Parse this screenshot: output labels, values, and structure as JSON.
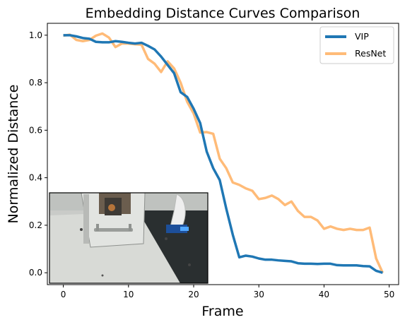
{
  "chart_data": {
    "type": "line",
    "title": "Embedding Distance Curves Comparison",
    "xlabel": "Frame",
    "ylabel": "Normalized Distance",
    "xlim": [
      -2.45,
      51.45
    ],
    "ylim": [
      -0.05,
      1.05
    ],
    "xticks": [
      0,
      10,
      20,
      30,
      40,
      50
    ],
    "yticks": [
      0.0,
      0.2,
      0.4,
      0.6,
      0.8,
      1.0
    ],
    "grid": false,
    "legend_position": "top-right",
    "series": [
      {
        "name": "VIP",
        "color": "#1f77b4",
        "x": [
          0,
          1,
          2,
          3,
          4,
          5,
          6,
          7,
          8,
          9,
          10,
          11,
          12,
          13,
          14,
          15,
          16,
          17,
          18,
          19,
          20,
          21,
          22,
          23,
          24,
          25,
          26,
          27,
          28,
          29,
          30,
          31,
          32,
          33,
          34,
          35,
          36,
          37,
          38,
          39,
          40,
          41,
          42,
          43,
          44,
          45,
          46,
          47,
          48,
          49
        ],
        "values": [
          1.0,
          1.0,
          0.995,
          0.988,
          0.985,
          0.972,
          0.97,
          0.97,
          0.975,
          0.972,
          0.968,
          0.965,
          0.968,
          0.955,
          0.94,
          0.91,
          0.875,
          0.84,
          0.76,
          0.74,
          0.69,
          0.63,
          0.51,
          0.44,
          0.39,
          0.27,
          0.16,
          0.065,
          0.072,
          0.068,
          0.06,
          0.055,
          0.055,
          0.052,
          0.05,
          0.048,
          0.04,
          0.038,
          0.038,
          0.037,
          0.038,
          0.038,
          0.032,
          0.031,
          0.031,
          0.031,
          0.028,
          0.027,
          0.008,
          0.0
        ]
      },
      {
        "name": "ResNet",
        "color": "#ffbb78",
        "x": [
          0,
          1,
          2,
          3,
          4,
          5,
          6,
          7,
          8,
          9,
          10,
          11,
          12,
          13,
          14,
          15,
          16,
          17,
          18,
          19,
          20,
          21,
          22,
          23,
          24,
          25,
          26,
          27,
          28,
          29,
          30,
          31,
          32,
          33,
          34,
          35,
          36,
          37,
          38,
          39,
          40,
          41,
          42,
          43,
          44,
          45,
          46,
          47,
          48,
          49
        ],
        "values": [
          0.998,
          1.002,
          0.98,
          0.975,
          0.98,
          0.998,
          1.007,
          0.99,
          0.95,
          0.965,
          0.965,
          0.962,
          0.96,
          0.9,
          0.88,
          0.845,
          0.89,
          0.86,
          0.8,
          0.72,
          0.67,
          0.59,
          0.592,
          0.585,
          0.48,
          0.44,
          0.38,
          0.37,
          0.355,
          0.345,
          0.31,
          0.315,
          0.325,
          0.31,
          0.285,
          0.3,
          0.26,
          0.235,
          0.235,
          0.22,
          0.185,
          0.195,
          0.185,
          0.18,
          0.185,
          0.18,
          0.18,
          0.19,
          0.06,
          0.0
        ]
      }
    ]
  },
  "inset": {
    "description_icon": "robot-camera-photo"
  }
}
